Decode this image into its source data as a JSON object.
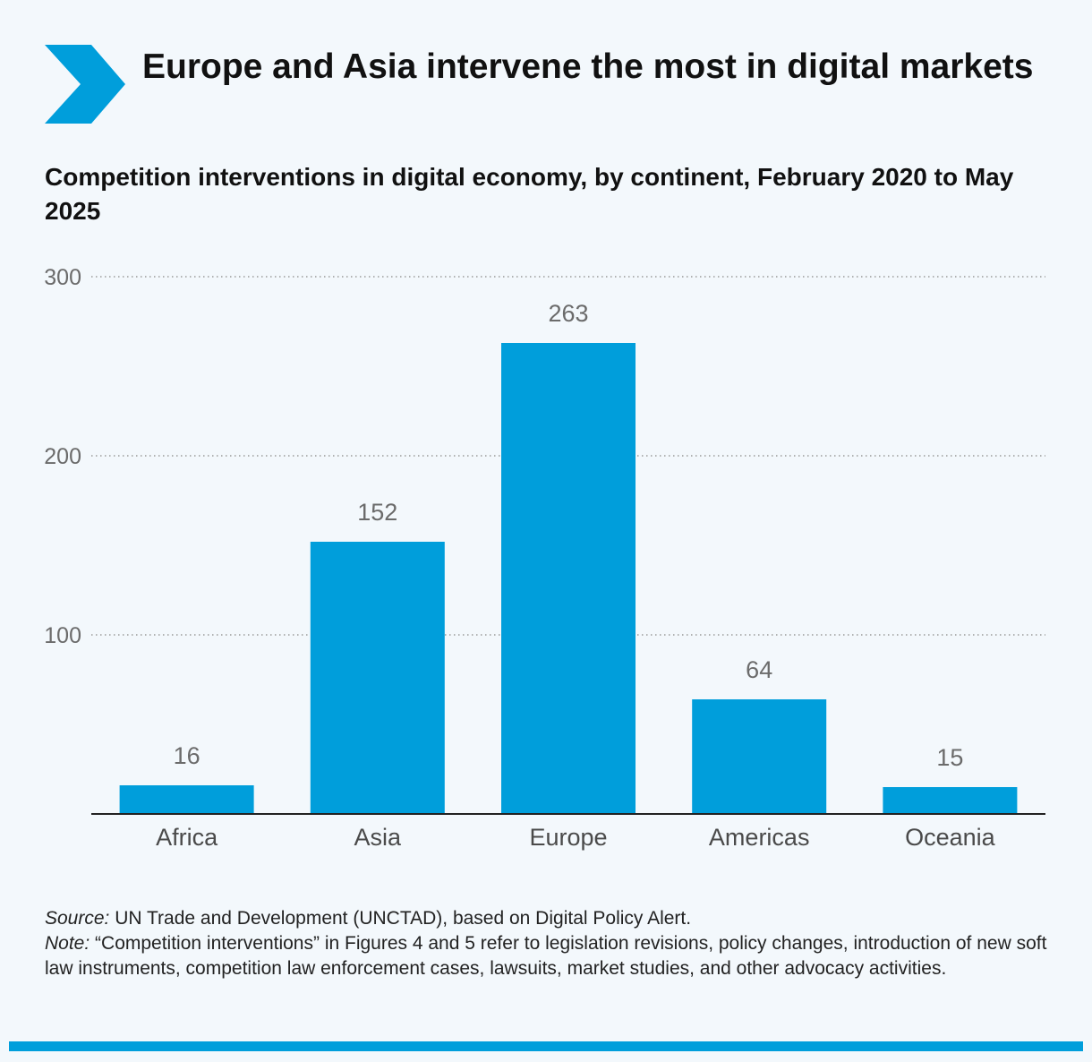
{
  "header": {
    "title": "Europe and Asia intervene the most in digital markets",
    "subtitle": "Competition interventions in digital economy, by continent, February 2020 to May 2025",
    "logo_icon": "chevron-right-icon"
  },
  "colors": {
    "accent": "#009edb",
    "gridline": "#9a9a9a",
    "axis_text": "#6b6b6b",
    "background": "#f3f8fc"
  },
  "chart_data": {
    "type": "bar",
    "title": "Europe and Asia intervene the most in digital markets",
    "subtitle": "Competition interventions in digital economy, by continent, February 2020 to May 2025",
    "categories": [
      "Africa",
      "Asia",
      "Europe",
      "Americas",
      "Oceania"
    ],
    "values": [
      16,
      152,
      263,
      64,
      15
    ],
    "xlabel": "",
    "ylabel": "",
    "ylim": [
      0,
      300
    ],
    "yticks": [
      100,
      200,
      300
    ],
    "grid": true,
    "legend": "none"
  },
  "footer": {
    "source_label": "Source:",
    "source_text": " UN Trade and Development (UNCTAD), based on Digital Policy Alert.",
    "note_label": "Note:",
    "note_text": " “Competition interventions” in Figures 4 and 5 refer to legislation revisions, policy changes, introduction of new soft law instruments, competition law enforcement cases, lawsuits, market studies, and other advocacy activities."
  }
}
